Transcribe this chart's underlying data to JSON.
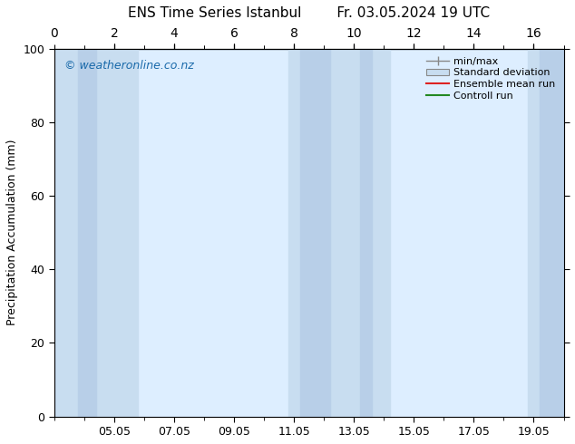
{
  "title_left": "ENS Time Series Istanbul",
  "title_right": "Fr. 03.05.2024 19 UTC",
  "ylabel": "Precipitation Accumulation (mm)",
  "watermark": "© weatheronline.co.nz",
  "ylim": [
    0,
    100
  ],
  "yticks": [
    0,
    20,
    40,
    60,
    80,
    100
  ],
  "x_tick_labels": [
    "05.05",
    "07.05",
    "09.05",
    "11.05",
    "13.05",
    "15.05",
    "17.05",
    "19.05"
  ],
  "x_tick_positions": [
    2,
    4,
    6,
    8,
    10,
    12,
    14,
    16
  ],
  "xlim": [
    0,
    17
  ],
  "plot_bg_color": "#ddeeff",
  "band_light_color": "#ddeeff",
  "band_dark_color": "#c5d9ee",
  "shaded_bands_dark": [
    {
      "x_start": 0.8,
      "x_end": 1.4
    },
    {
      "x_start": 8.2,
      "x_end": 9.2
    },
    {
      "x_start": 10.2,
      "x_end": 10.6
    },
    {
      "x_start": 16.2,
      "x_end": 17.0
    }
  ],
  "wide_light_bands": [
    {
      "x_start": 0.0,
      "x_end": 2.8
    },
    {
      "x_start": 7.8,
      "x_end": 11.2
    },
    {
      "x_start": 15.8,
      "x_end": 17.0
    }
  ],
  "legend_labels": [
    "min/max",
    "Standard deviation",
    "Ensemble mean run",
    "Controll run"
  ],
  "background_color": "#ffffff",
  "border_color": "#000000",
  "title_fontsize": 11,
  "label_fontsize": 9,
  "tick_fontsize": 9,
  "watermark_color": "#1a6aaa",
  "minor_tick_positions": [
    1,
    2,
    3,
    4,
    5,
    6,
    7,
    8,
    9,
    10,
    11,
    12,
    13,
    14,
    15,
    16,
    17
  ]
}
